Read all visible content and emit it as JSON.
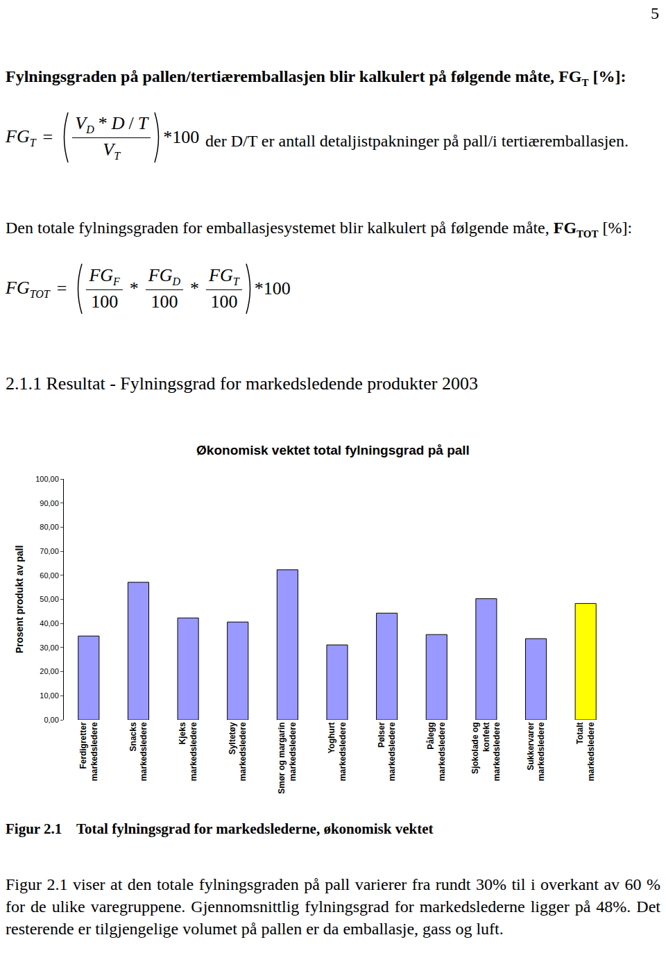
{
  "page_number": "5",
  "intro": {
    "before": "Fylningsgraden på pallen/tertiæremballasjen blir kalkulert på følgende måte, ",
    "symbol": {
      "t": "FG",
      "sub": "T"
    },
    "after": " [%]:"
  },
  "formula_1": {
    "lhs": [
      {
        "t": "FG",
        "sub": "T"
      }
    ],
    "eq": "=",
    "terms": [
      {
        "num": [
          {
            "t": "V",
            "sub": "D"
          },
          {
            "t": "*"
          },
          {
            "t": "D"
          },
          {
            "t": "/"
          },
          {
            "t": "T"
          }
        ],
        "den": [
          {
            "t": "V",
            "sub": "T"
          }
        ]
      }
    ],
    "after": "*100"
  },
  "explanation": "der D/T er antall detaljistpakninger på pall/i tertiæremballasjen.",
  "total_intro": {
    "before": "Den totale fylningsgraden for emballasjesystemet blir kalkulert på følgende måte, ",
    "symbol": {
      "t": "FG",
      "sub": "TOT"
    },
    "after": " [%]:"
  },
  "formula_2": {
    "lhs": [
      {
        "t": "FG",
        "sub": "TOT"
      }
    ],
    "eq": "=",
    "terms": [
      {
        "num": [
          {
            "t": "FG",
            "sub": "F"
          }
        ],
        "den": [
          {
            "t": "100"
          }
        ]
      },
      {
        "op": "*"
      },
      {
        "num": [
          {
            "t": "FG",
            "sub": "D"
          }
        ],
        "den": [
          {
            "t": "100"
          }
        ]
      },
      {
        "op": "*"
      },
      {
        "num": [
          {
            "t": "FG",
            "sub": "T"
          }
        ],
        "den": [
          {
            "t": "100"
          }
        ]
      }
    ],
    "after": "*100"
  },
  "heading": "2.1.1 Resultat - Fylningsgrad for markedsledende produkter 2003",
  "chart_data": {
    "type": "bar",
    "title": "Økonomisk vektet total fylningsgrad på pall",
    "y_label": "Prosent produkt av pall",
    "categories": [
      "Ferdigretter\nmarkedsledere",
      "Snacks\nmarkedsledere",
      "Kjeks\nmarkedsledere",
      "Syltetøy\nmarkedsledere",
      "Smør og margarin\nmarkedsledere",
      "Yoghurt\nmarkedsledere",
      "Pølser\nmarkedsledere",
      "Pålegg\nmarkedsledere",
      "Sjokolade og\nkonfekt\nmarkedsledere",
      "Sukkervarer\nmarkedsledere",
      "Totalt\nmarkedsledere"
    ],
    "values": [
      34.8,
      57.1,
      42.3,
      40.6,
      62.3,
      31.1,
      44.3,
      35.4,
      50.3,
      33.7,
      48.3
    ],
    "colors": [
      "#9999ff",
      "#9999ff",
      "#9999ff",
      "#9999ff",
      "#9999ff",
      "#9999ff",
      "#9999ff",
      "#9999ff",
      "#9999ff",
      "#9999ff",
      "#ffff00"
    ],
    "ylim": [
      0,
      100
    ],
    "yticks": [
      {
        "value": 0,
        "label": "0,00"
      },
      {
        "value": 10,
        "label": "10,00"
      },
      {
        "value": 20,
        "label": "20,00"
      },
      {
        "value": 30,
        "label": "30,00"
      },
      {
        "value": 40,
        "label": "40,00"
      },
      {
        "value": 50,
        "label": "50,00"
      },
      {
        "value": 60,
        "label": "60,00"
      },
      {
        "value": 70,
        "label": "70,00"
      },
      {
        "value": 80,
        "label": "80,00"
      },
      {
        "value": 90,
        "label": "90,00"
      },
      {
        "value": 100,
        "label": "100,00"
      }
    ],
    "grid": false
  },
  "caption": {
    "label": "Figur 2.1",
    "text": "Total fylningsgrad for markedslederne, økonomisk vektet"
  },
  "body": "Figur 2.1 viser at den totale fylningsgraden på pall varierer fra rundt 30% til i overkant av 60 % for de ulike varegruppene. Gjennomsnittlig fylningsgrad for markedslederne ligger på 48%. Det resterende er tilgjengelige volumet på pallen er da emballasje, gass og luft."
}
